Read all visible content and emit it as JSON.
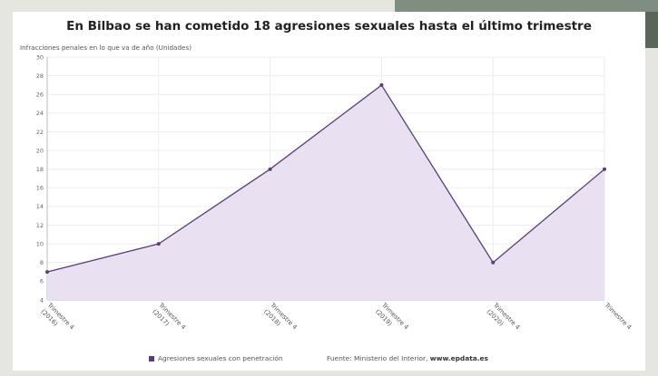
{
  "page": {
    "background": "#e6e6e1",
    "card_background": "#ffffff"
  },
  "chart_data": {
    "type": "area",
    "title": "En Bilbao se han cometido 18 agresiones sexuales hasta el último trimestre",
    "subtitle": "Infracciones penales en lo que va de año (Unidades)",
    "categories": [
      [
        "Trimestre 4",
        "(2016)"
      ],
      [
        "Trimestre 4",
        "(2017)"
      ],
      [
        "Trimestre 4",
        "(2018)"
      ],
      [
        "Trimestre 4",
        "(2019)"
      ],
      [
        "Trimestre 4",
        "(2020)"
      ],
      [
        "Trimestre 4",
        ""
      ]
    ],
    "series": [
      {
        "name": "Agresiones sexuales con penetración",
        "values": [
          7,
          10,
          18,
          27,
          8,
          18
        ],
        "line_color": "#5a3e7a",
        "fill_color": "#e9e0f2"
      }
    ],
    "ylim": [
      4,
      30
    ],
    "yticks": [
      4,
      6,
      8,
      10,
      12,
      14,
      16,
      18,
      20,
      22,
      24,
      26,
      28,
      30
    ],
    "grid": true,
    "legend_position": "bottom"
  },
  "source": {
    "label": "Fuente: Ministerio del Interior,",
    "url": "www.epdata.es"
  }
}
